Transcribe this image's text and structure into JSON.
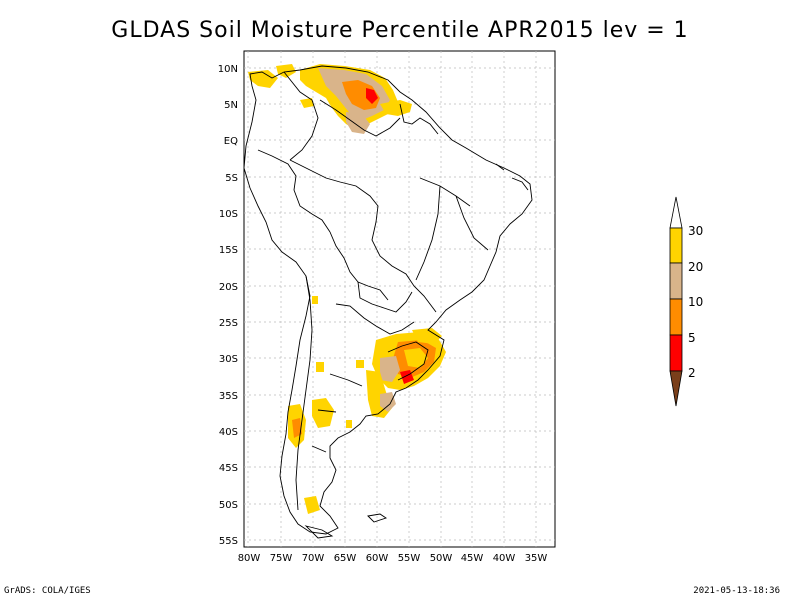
{
  "title": "GLDAS Soil Moisture Percentile APR2015 lev = 1",
  "footer": {
    "left": "GrADS: COLA/IGES",
    "right": "2021-05-13-18:36"
  },
  "axes": {
    "lat_labels": [
      "10N",
      "5N",
      "EQ",
      "5S",
      "10S",
      "15S",
      "20S",
      "25S",
      "30S",
      "35S",
      "40S",
      "45S",
      "50S",
      "55S"
    ],
    "lon_labels": [
      "80W",
      "75W",
      "70W",
      "65W",
      "60W",
      "55W",
      "50W",
      "45W",
      "40W",
      "35W"
    ]
  },
  "colorbar": {
    "levels": [
      "2",
      "5",
      "10",
      "20",
      "30"
    ],
    "colors": [
      "#7a3f1a",
      "#ff0000",
      "#ff8c00",
      "#d9b48a",
      "#ffd400",
      "#ffffff"
    ]
  },
  "colors": {
    "land_outline": "#000000",
    "grid": "#bbbbbb"
  }
}
